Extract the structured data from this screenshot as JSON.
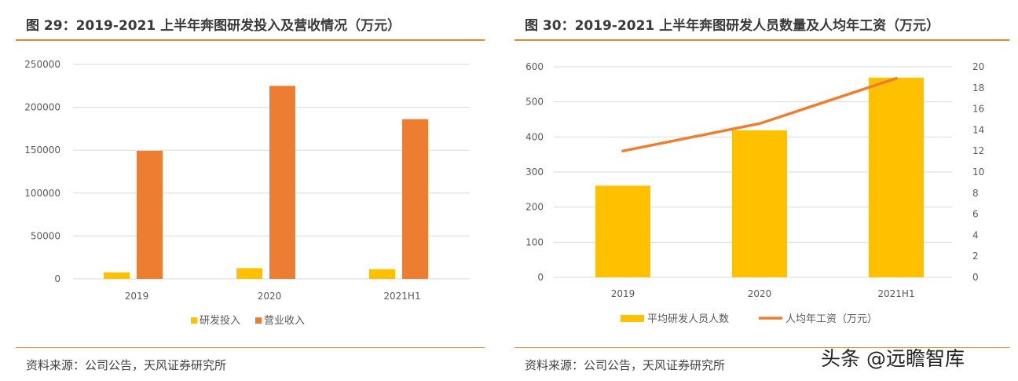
{
  "left": {
    "title": "图 29：2019-2021 上半年奔图研发投入及营收情况（万元）",
    "source": "资料来源：公司公告，天风证券研究所"
  },
  "right": {
    "title": "图 30：2019-2021 上半年奔图研发人员数量及人均年工资（万元）",
    "source": "资料来源：公司公告，天风证券研究所"
  },
  "watermark": "头条 @远瞻智库",
  "chart_data": [
    {
      "type": "bar",
      "title": "图 29：2019-2021 上半年奔图研发投入及营收情况（万元）",
      "categories": [
        "2019",
        "2020",
        "2021H1"
      ],
      "series": [
        {
          "name": "研发投入",
          "values": [
            7600,
            12500,
            11300
          ],
          "color": "#ffc000"
        },
        {
          "name": "营业收入",
          "values": [
            149300,
            225000,
            186200
          ],
          "color": "#ed7d31"
        }
      ],
      "ylim": [
        0,
        250000
      ],
      "yticks": [
        "0",
        "50000",
        "100000",
        "150000",
        "200000",
        "250000"
      ],
      "grid": true,
      "legend": "bottom"
    },
    {
      "type": "bar+line",
      "title": "图 30：2019-2021 上半年奔图研发人员数量及人均年工资（万元）",
      "categories": [
        "2019",
        "2020",
        "2021H1"
      ],
      "series": [
        {
          "name": "平均研发人员人数",
          "type": "bar",
          "axis": "left",
          "values": [
            261,
            419,
            569
          ],
          "color": "#ffc000"
        },
        {
          "name": "人均年工资（万元）",
          "type": "line",
          "axis": "right",
          "values": [
            12.0,
            14.6,
            18.9
          ],
          "color": "#ed7d31"
        }
      ],
      "ylim": [
        0,
        600
      ],
      "yticks": [
        "0",
        "100",
        "200",
        "300",
        "400",
        "500",
        "600"
      ],
      "y2lim": [
        0,
        20
      ],
      "y2ticks": [
        "0",
        "2",
        "4",
        "6",
        "8",
        "10",
        "12",
        "14",
        "16",
        "18",
        "20"
      ],
      "grid": true,
      "legend": "bottom"
    }
  ]
}
